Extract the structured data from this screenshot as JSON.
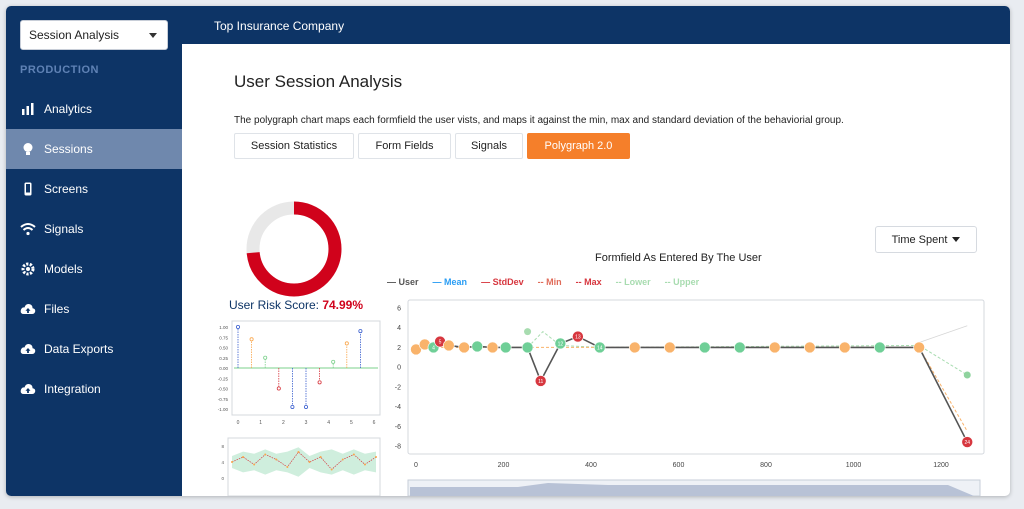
{
  "app_select": {
    "value": "Session Analysis"
  },
  "sidebar": {
    "section": "PRODUCTION",
    "items": [
      {
        "label": "Analytics",
        "icon": "bar-chart-icon"
      },
      {
        "label": "Sessions",
        "icon": "lightbulb-icon",
        "active": true
      },
      {
        "label": "Screens",
        "icon": "mobile-phone-icon"
      },
      {
        "label": "Signals",
        "icon": "wifi-icon"
      },
      {
        "label": "Models",
        "icon": "gear-icon"
      },
      {
        "label": "Files",
        "icon": "cloud-upload-icon"
      },
      {
        "label": "Data Exports",
        "icon": "cloud-upload-icon"
      },
      {
        "label": "Integration",
        "icon": "cloud-upload-icon"
      }
    ]
  },
  "header": {
    "company": "Top Insurance Company"
  },
  "page": {
    "title": "User Session Analysis",
    "description": "The polygraph chart maps each formfield the user vists, and maps it against the min, max and standard deviation of the behaviorial group.",
    "tabs": [
      {
        "label": "Session Statistics"
      },
      {
        "label": "Form Fields"
      },
      {
        "label": "Signals"
      },
      {
        "label": "Polygraph 2.0",
        "active": true
      }
    ],
    "risk": {
      "label": "User Risk Score:",
      "value": "74.99%",
      "fraction": 0.7499
    },
    "dropdown": {
      "label": "Time Spent"
    }
  },
  "colors": {
    "navy": "#0d3466",
    "accent": "#f57f2a",
    "risk": "#d0021b",
    "green": "#6fcf97",
    "orange": "#f9b36b",
    "red": "#d7373f",
    "user": "#555555"
  },
  "chart_data": [
    {
      "type": "donut",
      "value": 74.99
    },
    {
      "type": "scatter",
      "x": [
        0,
        0.6,
        1.2,
        1.8,
        2.4,
        3.0,
        3.6,
        4.2,
        4.8,
        5.4
      ],
      "series": [
        {
          "values": [
            1.0,
            0.7,
            0.25,
            -0.5,
            -0.95,
            -0.95,
            -0.35,
            0.15,
            0.6,
            0.9
          ]
        }
      ],
      "xticks": [
        "0",
        "1",
        "2",
        "3",
        "4",
        "5",
        "6"
      ],
      "yticks": [
        "1.00",
        "0.75",
        "0.50",
        "0.25",
        "0.00",
        "-0.25",
        "-0.50",
        "-0.75",
        "-1.00"
      ],
      "xlim": [
        0,
        6
      ],
      "ylim": [
        -1,
        1
      ]
    },
    {
      "type": "area",
      "x": [
        0,
        1,
        2,
        3,
        4,
        5,
        6,
        7,
        8,
        9,
        10,
        11,
        12,
        13
      ],
      "series": [
        {
          "values": [
            0,
            2,
            -1,
            3,
            1,
            -2,
            4,
            0,
            2,
            -3,
            1,
            3,
            -1,
            2
          ]
        }
      ],
      "yticks": [
        "8",
        "4",
        "0"
      ]
    },
    {
      "type": "line",
      "title": "Formfield As Entered By The User",
      "legend": [
        "User",
        "Mean",
        "StdDev",
        "Min",
        "Max",
        "Lower",
        "Upper"
      ],
      "xlim": [
        0,
        1280
      ],
      "ylim": [
        -8,
        6
      ],
      "xticks": [
        "0",
        "200",
        "400",
        "600",
        "800",
        "1000",
        "1200"
      ],
      "yticks": [
        "6",
        "4",
        "2",
        "0",
        "-2",
        "-4",
        "-6",
        "-8"
      ],
      "series": [
        {
          "name": "User",
          "points": [
            {
              "x": 0,
              "y": 1.8,
              "label": "",
              "color": "orange"
            },
            {
              "x": 20,
              "y": 2.3,
              "label": "",
              "color": "orange"
            },
            {
              "x": 40,
              "y": 2.0,
              "label": "4",
              "color": "green"
            },
            {
              "x": 55,
              "y": 2.6,
              "label": "5",
              "color": "red"
            },
            {
              "x": 75,
              "y": 2.2,
              "label": "",
              "color": "orange"
            },
            {
              "x": 110,
              "y": 2.0,
              "label": "",
              "color": "orange"
            },
            {
              "x": 140,
              "y": 2.1,
              "label": "",
              "color": "green"
            },
            {
              "x": 175,
              "y": 2.0,
              "label": "",
              "color": "orange"
            },
            {
              "x": 205,
              "y": 2.0,
              "label": "",
              "color": "green"
            },
            {
              "x": 255,
              "y": 2.0,
              "label": "",
              "color": "green"
            },
            {
              "x": 285,
              "y": -1.4,
              "label": "11",
              "color": "red"
            },
            {
              "x": 330,
              "y": 2.4,
              "label": "12",
              "color": "green"
            },
            {
              "x": 370,
              "y": 3.1,
              "label": "13",
              "color": "red"
            },
            {
              "x": 420,
              "y": 2.0,
              "label": "14",
              "color": "green"
            },
            {
              "x": 500,
              "y": 2.0,
              "label": "",
              "color": "orange"
            },
            {
              "x": 580,
              "y": 2.0,
              "label": "",
              "color": "orange"
            },
            {
              "x": 660,
              "y": 2.0,
              "label": "",
              "color": "green"
            },
            {
              "x": 740,
              "y": 2.0,
              "label": "",
              "color": "green"
            },
            {
              "x": 820,
              "y": 2.0,
              "label": "",
              "color": "orange"
            },
            {
              "x": 900,
              "y": 2.0,
              "label": "",
              "color": "orange"
            },
            {
              "x": 980,
              "y": 2.0,
              "label": "",
              "color": "orange"
            },
            {
              "x": 1060,
              "y": 2.0,
              "label": "",
              "color": "green"
            },
            {
              "x": 1150,
              "y": 2.0,
              "label": "",
              "color": "orange"
            },
            {
              "x": 1260,
              "y": -7.6,
              "label": "24",
              "color": "red"
            }
          ]
        },
        {
          "name": "Lower",
          "points": [
            {
              "x": 255,
              "y": 2.0
            },
            {
              "x": 290,
              "y": 3.6
            },
            {
              "x": 330,
              "y": 2.2
            },
            {
              "x": 420,
              "y": 2.0
            },
            {
              "x": 1150,
              "y": 2.2
            },
            {
              "x": 1260,
              "y": -0.8
            }
          ]
        },
        {
          "name": "Max",
          "points": [
            {
              "x": 0,
              "y": 2.0
            },
            {
              "x": 420,
              "y": 2.0
            },
            {
              "x": 1150,
              "y": 2.0
            },
            {
              "x": 1260,
              "y": -6.5
            }
          ]
        },
        {
          "name": "Upper",
          "points": [
            {
              "x": 1150,
              "y": 2.5
            },
            {
              "x": 1260,
              "y": 4.2
            }
          ]
        }
      ]
    }
  ]
}
